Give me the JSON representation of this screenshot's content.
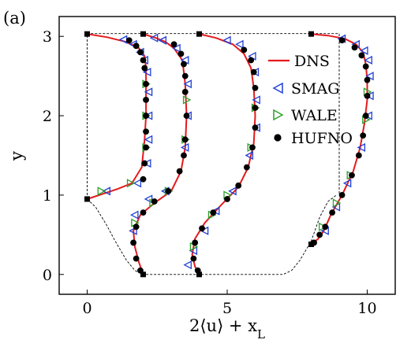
{
  "panel_label": "(a)",
  "chart_data": {
    "type": "line",
    "xlabel": "2⟨u⟩ + x_L",
    "ylabel": "y",
    "xlim": [
      -1.0,
      11.0
    ],
    "ylim": [
      -0.25,
      3.25
    ],
    "xticks": [
      0,
      5,
      10
    ],
    "yticks": [
      0,
      1,
      2,
      3
    ],
    "x_tick_labels": [
      "0",
      "5",
      "10"
    ],
    "y_tick_labels": [
      "0",
      "1",
      "2",
      "3"
    ],
    "grid": false,
    "legend_position": "right",
    "colors": {
      "DNS": "#e41a1c",
      "SMAG": "#1f3fd6",
      "WALE": "#2ca02c",
      "HUFNO": "#000000"
    },
    "hill_geometry": {
      "x": [
        0,
        0.3,
        0.7,
        1.0,
        1.4,
        1.7,
        2.0,
        3.0,
        4.0,
        5.0,
        6.0,
        7.0,
        7.3,
        7.6,
        8.0,
        8.3,
        8.6,
        8.9
      ],
      "y": [
        0.95,
        0.85,
        0.62,
        0.42,
        0.18,
        0.05,
        0.0,
        0.0,
        0.0,
        0.0,
        0.0,
        0.0,
        0.05,
        0.18,
        0.42,
        0.72,
        0.92,
        1.0
      ],
      "domain_top": 3.035,
      "domain_left": 0.0,
      "domain_right": 9.0
    },
    "series": [
      {
        "name": "DNS",
        "profiles": [
          {
            "x": [
              0.0,
              0.6,
              1.1,
              1.6,
              1.95,
              2.05,
              2.1,
              2.1,
              2.1,
              2.05,
              1.85,
              1.4,
              0.7,
              0.0
            ],
            "y": [
              0.95,
              1.02,
              1.08,
              1.15,
              1.35,
              1.7,
              2.0,
              2.3,
              2.6,
              2.75,
              2.85,
              2.93,
              2.99,
              3.03
            ]
          },
          {
            "x": [
              2.0,
              1.85,
              1.7,
              1.65,
              1.9,
              2.4,
              3.0,
              3.35,
              3.5,
              3.55,
              3.5,
              3.4,
              3.1,
              2.8,
              2.45,
              2.0
            ],
            "y": [
              0.0,
              0.15,
              0.35,
              0.55,
              0.75,
              0.9,
              1.05,
              1.3,
              1.6,
              2.0,
              2.4,
              2.7,
              2.85,
              2.93,
              2.98,
              3.03
            ]
          },
          {
            "x": [
              4.0,
              3.85,
              3.75,
              3.85,
              4.2,
              4.8,
              5.4,
              5.75,
              5.95,
              6.0,
              5.95,
              5.85,
              5.6,
              5.2,
              4.6,
              4.0
            ],
            "y": [
              0.0,
              0.1,
              0.25,
              0.45,
              0.65,
              0.88,
              1.1,
              1.35,
              1.65,
              2.0,
              2.35,
              2.6,
              2.78,
              2.9,
              2.98,
              3.03
            ]
          },
          {
            "x": [
              8.0,
              8.25,
              8.45,
              8.7,
              9.1,
              9.5,
              9.75,
              9.9,
              10.0,
              10.0,
              9.95,
              9.85,
              9.6,
              9.2,
              8.6,
              8.0
            ],
            "y": [
              0.38,
              0.45,
              0.55,
              0.75,
              1.0,
              1.3,
              1.6,
              1.9,
              2.2,
              2.45,
              2.65,
              2.8,
              2.9,
              2.97,
              3.01,
              3.03
            ]
          }
        ]
      },
      {
        "name": "SMAG",
        "profiles": [
          {
            "x": [
              0.7,
              1.8,
              2.15,
              2.2,
              2.2,
              2.2,
              2.15,
              2.05,
              1.9,
              1.65,
              1.3
            ],
            "y": [
              1.05,
              1.15,
              1.4,
              1.7,
              2.0,
              2.3,
              2.55,
              2.7,
              2.8,
              2.9,
              2.96
            ]
          },
          {
            "x": [
              1.65,
              1.7,
              2.2,
              2.8,
              3.5,
              3.6,
              3.6,
              3.5,
              3.2,
              2.7,
              2.4
            ],
            "y": [
              0.55,
              0.75,
              0.95,
              1.05,
              1.6,
              2.0,
              2.4,
              2.7,
              2.85,
              2.95,
              2.98
            ]
          },
          {
            "x": [
              3.6,
              3.8,
              4.2,
              4.6,
              5.2,
              5.8,
              6.05,
              6.05,
              6.0,
              5.9,
              5.45,
              5.0
            ],
            "y": [
              0.12,
              0.3,
              0.55,
              0.8,
              1.05,
              1.5,
              1.85,
              2.2,
              2.55,
              2.75,
              2.9,
              2.95
            ]
          },
          {
            "x": [
              8.5,
              8.9,
              9.3,
              9.8,
              10.05,
              10.1,
              10.1,
              10.05,
              9.9,
              9.6,
              9.1
            ],
            "y": [
              0.55,
              0.85,
              1.15,
              1.6,
              2.0,
              2.25,
              2.5,
              2.7,
              2.82,
              2.9,
              2.97
            ]
          }
        ]
      },
      {
        "name": "WALE",
        "profiles": [
          {
            "x": [
              0.5,
              1.55,
              2.1,
              2.1,
              2.1
            ],
            "y": [
              1.05,
              1.15,
              1.6,
              2.0,
              2.4
            ]
          },
          {
            "x": [
              1.7,
              2.35,
              2.9,
              3.5,
              3.55
            ],
            "y": [
              0.65,
              0.9,
              1.05,
              1.7,
              2.2
            ]
          },
          {
            "x": [
              3.8,
              4.45,
              5.0,
              5.85,
              6.0
            ],
            "y": [
              0.35,
              0.75,
              1.0,
              1.6,
              2.1
            ]
          },
          {
            "x": [
              8.4,
              8.9,
              9.4,
              9.95,
              10.0
            ],
            "y": [
              0.6,
              0.9,
              1.25,
              1.95,
              2.3
            ]
          }
        ]
      },
      {
        "name": "HUFNO",
        "profiles": [
          {
            "x": [
              2.0,
              2.05,
              2.1,
              2.1,
              2.1,
              2.1,
              2.1,
              2.05,
              2.0,
              1.9,
              1.75,
              1.5
            ],
            "y": [
              1.2,
              1.4,
              1.6,
              1.8,
              2.0,
              2.2,
              2.4,
              2.6,
              2.7,
              2.8,
              2.88,
              2.95
            ]
          },
          {
            "x": [
              1.9,
              1.75,
              1.65,
              1.75,
              2.0,
              2.4,
              2.9,
              3.3,
              3.45,
              3.5,
              3.55,
              3.5,
              3.5,
              3.45,
              3.35,
              3.1
            ],
            "y": [
              0.05,
              0.2,
              0.4,
              0.6,
              0.78,
              0.92,
              1.05,
              1.3,
              1.5,
              1.7,
              2.0,
              2.3,
              2.5,
              2.65,
              2.78,
              2.9
            ]
          },
          {
            "x": [
              3.95,
              3.8,
              3.85,
              4.1,
              4.5,
              5.0,
              5.4,
              5.7,
              5.9,
              6.0,
              6.0,
              6.0,
              5.95,
              5.85,
              5.6
            ],
            "y": [
              0.05,
              0.2,
              0.4,
              0.58,
              0.78,
              0.95,
              1.12,
              1.35,
              1.6,
              1.85,
              2.1,
              2.35,
              2.55,
              2.7,
              2.83
            ]
          },
          {
            "x": [
              8.1,
              8.3,
              8.5,
              8.75,
              9.1,
              9.45,
              9.7,
              9.85,
              9.95,
              10.0,
              10.0,
              9.95,
              9.8,
              9.55,
              9.1
            ],
            "y": [
              0.4,
              0.5,
              0.6,
              0.78,
              1.0,
              1.25,
              1.5,
              1.75,
              2.0,
              2.25,
              2.45,
              2.62,
              2.76,
              2.86,
              2.95
            ]
          }
        ]
      }
    ]
  },
  "legend": {
    "entries": [
      {
        "label": "DNS",
        "marker": "line"
      },
      {
        "label": "SMAG",
        "marker": "triangle-left"
      },
      {
        "label": "WALE",
        "marker": "triangle-right"
      },
      {
        "label": "HUFNO",
        "marker": "circle"
      }
    ]
  }
}
